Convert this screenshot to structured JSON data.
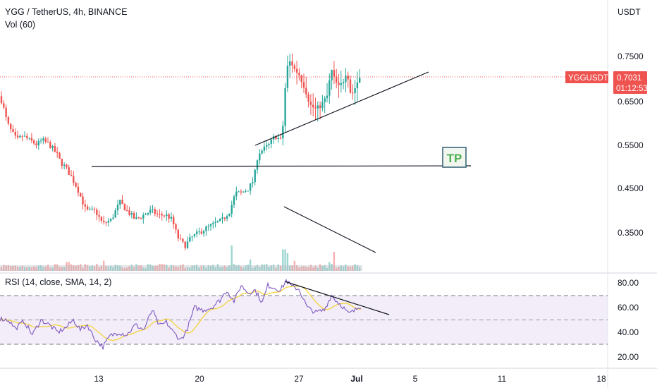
{
  "legend": {
    "title": "YGG / TetherUS, 4h, BINANCE",
    "volume": "Vol (60)",
    "rsi": "RSI (14, close, SMA, 14, 2)"
  },
  "price_axis": {
    "unit": "USDT",
    "ticks": [
      "0.7500",
      "0.6500",
      "0.5500",
      "0.4500",
      "0.3500"
    ]
  },
  "rsi_axis": {
    "ticks": [
      "80.00",
      "60.00",
      "40.00",
      "20.00"
    ]
  },
  "time_axis": {
    "ticks": [
      "13",
      "20",
      "27",
      "Jul",
      "5",
      "11",
      "18"
    ]
  },
  "price_badge": {
    "symbol": "YGGUSDT",
    "price": "0.7031",
    "countdown": "01:12:53"
  },
  "annotation": {
    "tp_label": "TP"
  },
  "colors": {
    "up": "#26a69a",
    "down": "#ef5350",
    "rsi_line": "#7e57c2",
    "rsi_ma": "#f3d33b",
    "rsi_band": "#ede7f6",
    "price_line": "#ef5350",
    "tp": "#4caf50",
    "tp_border": "#2f5d72"
  },
  "chart_data": {
    "type": "candlestick",
    "symbol": "YGG / TetherUS",
    "timeframe": "4h",
    "exchange": "BINANCE",
    "last_price": 0.7031,
    "price_range": [
      0.3,
      0.85
    ],
    "price_anchors": [
      [
        0,
        0.66
      ],
      [
        4,
        0.64
      ],
      [
        10,
        0.6
      ],
      [
        16,
        0.58
      ],
      [
        24,
        0.56
      ],
      [
        32,
        0.57
      ],
      [
        42,
        0.56
      ],
      [
        52,
        0.55
      ],
      [
        60,
        0.56
      ],
      [
        70,
        0.55
      ],
      [
        80,
        0.53
      ],
      [
        86,
        0.51
      ],
      [
        92,
        0.5
      ],
      [
        100,
        0.48
      ],
      [
        110,
        0.45
      ],
      [
        122,
        0.4
      ],
      [
        135,
        0.4
      ],
      [
        146,
        0.37
      ],
      [
        158,
        0.38
      ],
      [
        170,
        0.42
      ],
      [
        180,
        0.4
      ],
      [
        192,
        0.38
      ],
      [
        204,
        0.39
      ],
      [
        214,
        0.4
      ],
      [
        226,
        0.39
      ],
      [
        236,
        0.39
      ],
      [
        244,
        0.38
      ],
      [
        252,
        0.34
      ],
      [
        262,
        0.32
      ],
      [
        272,
        0.34
      ],
      [
        282,
        0.35
      ],
      [
        292,
        0.36
      ],
      [
        304,
        0.37
      ],
      [
        316,
        0.38
      ],
      [
        326,
        0.4
      ],
      [
        334,
        0.44
      ],
      [
        342,
        0.44
      ],
      [
        352,
        0.45
      ],
      [
        360,
        0.47
      ],
      [
        366,
        0.53
      ],
      [
        374,
        0.54
      ],
      [
        382,
        0.55
      ],
      [
        390,
        0.57
      ],
      [
        398,
        0.56
      ],
      [
        402,
        0.6
      ],
      [
        406,
        0.72
      ],
      [
        412,
        0.74
      ],
      [
        418,
        0.72
      ],
      [
        424,
        0.71
      ],
      [
        432,
        0.68
      ],
      [
        440,
        0.64
      ],
      [
        448,
        0.63
      ],
      [
        456,
        0.64
      ],
      [
        464,
        0.66
      ],
      [
        470,
        0.72
      ],
      [
        474,
        0.7
      ],
      [
        480,
        0.68
      ],
      [
        486,
        0.69
      ],
      [
        492,
        0.72
      ],
      [
        498,
        0.66
      ],
      [
        504,
        0.68
      ],
      [
        510,
        0.7031
      ]
    ],
    "volume_spikes": [
      [
        329,
        1.0
      ],
      [
        403,
        0.85
      ],
      [
        406,
        0.7
      ],
      [
        474,
        0.75
      ],
      [
        356,
        0.45
      ],
      [
        419,
        0.4
      ],
      [
        468,
        0.35
      ],
      [
        147,
        0.4
      ],
      [
        96,
        0.35
      ]
    ],
    "rsi": {
      "period": 14,
      "upper_band": 70,
      "middle": 50,
      "lower_band": 30,
      "range": [
        12,
        88
      ],
      "anchors": [
        [
          0,
          51
        ],
        [
          12,
          50
        ],
        [
          22,
          43
        ],
        [
          34,
          49
        ],
        [
          46,
          38
        ],
        [
          58,
          50
        ],
        [
          70,
          46
        ],
        [
          82,
          40
        ],
        [
          94,
          44
        ],
        [
          104,
          50
        ],
        [
          114,
          42
        ],
        [
          124,
          46
        ],
        [
          134,
          35
        ],
        [
          146,
          28
        ],
        [
          156,
          37
        ],
        [
          168,
          40
        ],
        [
          180,
          38
        ],
        [
          192,
          46
        ],
        [
          204,
          42
        ],
        [
          216,
          58
        ],
        [
          226,
          45
        ],
        [
          236,
          48
        ],
        [
          246,
          40
        ],
        [
          256,
          34
        ],
        [
          264,
          40
        ],
        [
          276,
          60
        ],
        [
          288,
          58
        ],
        [
          300,
          60
        ],
        [
          312,
          66
        ],
        [
          322,
          74
        ],
        [
          332,
          65
        ],
        [
          342,
          78
        ],
        [
          352,
          72
        ],
        [
          362,
          74
        ],
        [
          372,
          64
        ],
        [
          380,
          78
        ],
        [
          390,
          76
        ],
        [
          398,
          74
        ],
        [
          406,
          82
        ],
        [
          414,
          77
        ],
        [
          424,
          75
        ],
        [
          436,
          60
        ],
        [
          448,
          56
        ],
        [
          460,
          58
        ],
        [
          470,
          70
        ],
        [
          478,
          65
        ],
        [
          486,
          61
        ],
        [
          494,
          55
        ],
        [
          502,
          57
        ],
        [
          510,
          61
        ]
      ]
    },
    "drawings": [
      {
        "kind": "trendline",
        "note": "support",
        "from": [
          362,
          0.556
        ],
        "to": [
          608,
          0.712
        ]
      },
      {
        "kind": "horizontal",
        "note": "target",
        "from": [
          130,
          0.499
        ],
        "to": [
          668,
          0.501
        ],
        "label": "TP"
      },
      {
        "kind": "trendline",
        "note": "volume",
        "from": [
          403,
          "volume-high"
        ],
        "to": [
          533,
          "volume-low"
        ]
      },
      {
        "kind": "trendline",
        "note": "rsi",
        "from": [
          404,
          82
        ],
        "to": [
          552,
          56
        ]
      }
    ]
  }
}
